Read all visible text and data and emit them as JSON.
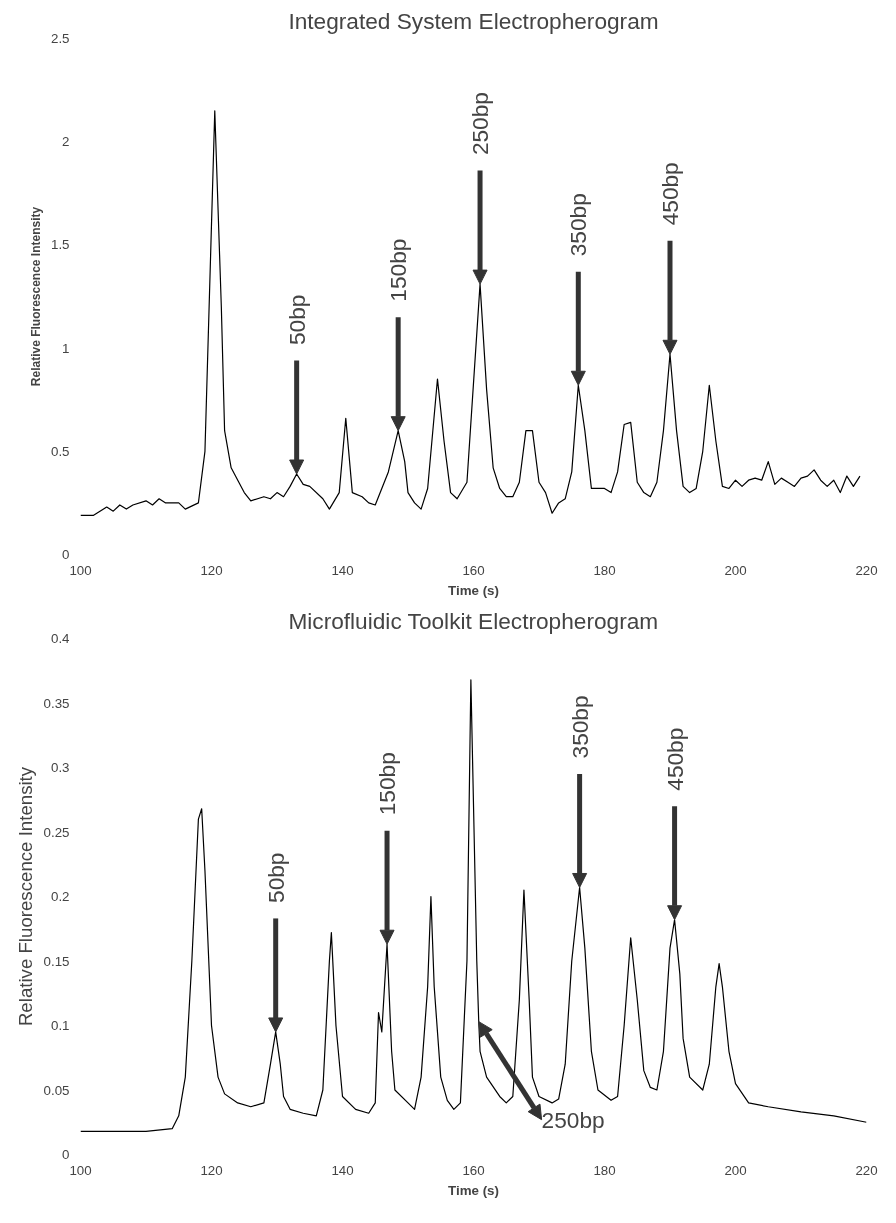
{
  "chart_data": [
    {
      "type": "line",
      "title": "Integrated System Electropherogram",
      "xlabel": "Time (s)",
      "ylabel": "Relative Fluorescence Intensity",
      "xlim": [
        100,
        220
      ],
      "ylim": [
        0,
        2.5
      ],
      "xticks": [
        100,
        120,
        140,
        160,
        180,
        200,
        220
      ],
      "yticks": [
        0,
        0.5,
        1,
        1.5,
        2,
        2.5
      ],
      "grid": false,
      "series": [
        {
          "color": "#000000",
          "x": [
            100,
            102,
            104,
            105,
            106,
            107,
            108,
            110,
            111,
            112,
            113,
            115,
            116,
            118,
            119,
            120.5,
            121.5,
            122,
            123,
            125,
            126,
            128,
            129,
            130,
            131,
            132,
            133,
            134,
            135,
            137,
            138,
            139.5,
            140.5,
            141.5,
            143,
            144,
            145,
            147,
            148.5,
            149.5,
            150,
            151,
            152,
            153,
            154.5,
            155.5,
            156.5,
            157.5,
            159,
            161,
            162,
            163,
            164,
            165,
            166,
            167,
            168,
            169,
            170,
            171,
            172,
            173,
            174,
            175,
            176,
            177,
            178,
            180,
            181,
            182,
            183,
            184,
            185,
            186,
            187,
            188,
            189,
            190,
            191,
            192,
            193,
            194,
            195,
            196,
            197,
            198,
            199,
            200,
            201,
            202,
            203,
            204,
            205,
            206,
            207,
            208,
            209,
            210,
            211,
            212,
            213,
            214,
            215,
            216,
            217,
            218,
            219
          ],
          "values": [
            0.19,
            0.19,
            0.23,
            0.21,
            0.24,
            0.22,
            0.24,
            0.26,
            0.24,
            0.27,
            0.25,
            0.25,
            0.22,
            0.25,
            0.5,
            2.15,
            1.2,
            0.6,
            0.42,
            0.3,
            0.26,
            0.28,
            0.27,
            0.3,
            0.28,
            0.33,
            0.39,
            0.34,
            0.33,
            0.27,
            0.22,
            0.3,
            0.66,
            0.3,
            0.28,
            0.25,
            0.24,
            0.4,
            0.6,
            0.45,
            0.3,
            0.25,
            0.22,
            0.32,
            0.85,
            0.55,
            0.3,
            0.27,
            0.35,
            1.31,
            0.8,
            0.42,
            0.32,
            0.28,
            0.28,
            0.35,
            0.6,
            0.6,
            0.35,
            0.3,
            0.2,
            0.25,
            0.27,
            0.4,
            0.82,
            0.6,
            0.32,
            0.32,
            0.3,
            0.4,
            0.63,
            0.64,
            0.35,
            0.3,
            0.28,
            0.35,
            0.6,
            0.97,
            0.6,
            0.33,
            0.3,
            0.32,
            0.5,
            0.82,
            0.55,
            0.33,
            0.32,
            0.36,
            0.33,
            0.36,
            0.37,
            0.36,
            0.45,
            0.34,
            0.37,
            0.35,
            0.33,
            0.37,
            0.38,
            0.41,
            0.36,
            0.33,
            0.36,
            0.3,
            0.38,
            0.33,
            0.38
          ]
        }
      ],
      "annotations": [
        {
          "text": "50bp",
          "x": 133,
          "y": 0.39
        },
        {
          "text": "150bp",
          "x": 148.5,
          "y": 0.6
        },
        {
          "text": "250bp",
          "x": 161,
          "y": 1.31
        },
        {
          "text": "350bp",
          "x": 176,
          "y": 0.82
        },
        {
          "text": "450bp",
          "x": 190,
          "y": 0.97
        }
      ]
    },
    {
      "type": "line",
      "title": "Microfluidic Toolkit Electropherogram",
      "xlabel": "Time (s)",
      "ylabel": "Relative Fluorescence Intensity",
      "xlim": [
        100,
        220
      ],
      "ylim": [
        0,
        0.4
      ],
      "xticks": [
        100,
        120,
        140,
        160,
        180,
        200,
        220
      ],
      "yticks": [
        0,
        0.05,
        0.1,
        0.15,
        0.2,
        0.25,
        0.3,
        0.35,
        0.4
      ],
      "grid": false,
      "series": [
        {
          "color": "#000000",
          "x": [
            100,
            110,
            114,
            115,
            116,
            117,
            118,
            118.5,
            119,
            120,
            121,
            122,
            124,
            126,
            128,
            129,
            129.8,
            130.5,
            131,
            132,
            134,
            136,
            137,
            138,
            138.3,
            139,
            140,
            142,
            144,
            145,
            145.5,
            146,
            146.8,
            147.5,
            148,
            150,
            151,
            152,
            153,
            153.5,
            154,
            155,
            156,
            157,
            158,
            159,
            159.6,
            160.5,
            160.8,
            161,
            162,
            164,
            165,
            166,
            167,
            167.7,
            168.5,
            169,
            170,
            172,
            173,
            174,
            175,
            176.2,
            177,
            178,
            179,
            181,
            182,
            183,
            184,
            185,
            186,
            187,
            188,
            189,
            190,
            190.7,
            191.5,
            192,
            193,
            195,
            196,
            197,
            197.5,
            198,
            199,
            200,
            202,
            205,
            210,
            215,
            220
          ],
          "values": [
            0.018,
            0.018,
            0.02,
            0.03,
            0.06,
            0.15,
            0.26,
            0.268,
            0.22,
            0.1,
            0.06,
            0.047,
            0.04,
            0.037,
            0.04,
            0.07,
            0.095,
            0.07,
            0.045,
            0.035,
            0.032,
            0.03,
            0.05,
            0.15,
            0.172,
            0.1,
            0.045,
            0.035,
            0.032,
            0.04,
            0.11,
            0.095,
            0.163,
            0.08,
            0.05,
            0.04,
            0.035,
            0.06,
            0.13,
            0.2,
            0.13,
            0.06,
            0.042,
            0.035,
            0.04,
            0.15,
            0.368,
            0.15,
            0.103,
            0.08,
            0.06,
            0.045,
            0.04,
            0.045,
            0.12,
            0.205,
            0.12,
            0.06,
            0.045,
            0.04,
            0.043,
            0.07,
            0.15,
            0.207,
            0.16,
            0.08,
            0.05,
            0.042,
            0.045,
            0.1,
            0.168,
            0.12,
            0.065,
            0.052,
            0.05,
            0.08,
            0.16,
            0.182,
            0.14,
            0.09,
            0.06,
            0.05,
            0.07,
            0.13,
            0.148,
            0.13,
            0.08,
            0.055,
            0.04,
            0.037,
            0.033,
            0.03,
            0.025
          ]
        }
      ],
      "annotations": [
        {
          "text": "50bp",
          "x": 129.8,
          "y": 0.095
        },
        {
          "text": "150bp",
          "x": 146.8,
          "y": 0.163
        },
        {
          "text": "250bp",
          "x": 160.8,
          "y": 0.103
        },
        {
          "text": "350bp",
          "x": 176.2,
          "y": 0.207
        },
        {
          "text": "450bp",
          "x": 190.7,
          "y": 0.182
        }
      ]
    }
  ]
}
